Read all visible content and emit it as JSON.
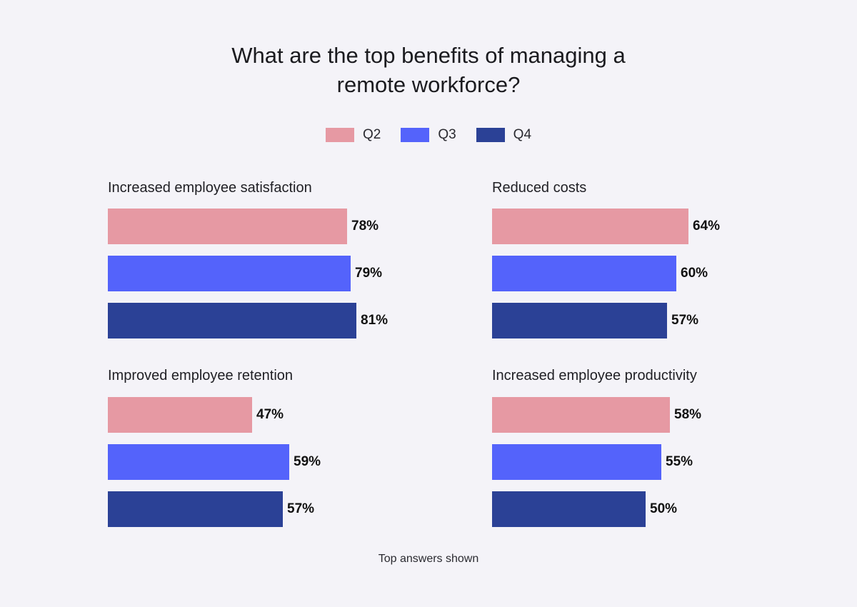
{
  "header": {
    "title_line1": "What are the top benefits of managing a",
    "title_line2": "remote workforce?"
  },
  "legend": [
    {
      "label": "Q2",
      "color": "#e699a3"
    },
    {
      "label": "Q3",
      "color": "#5463fb"
    },
    {
      "label": "Q4",
      "color": "#2b4196"
    }
  ],
  "footnote": "Top answers shown",
  "chart_data": {
    "type": "bar",
    "orientation": "horizontal",
    "title": "What are the top benefits of managing a remote workforce?",
    "series_names": [
      "Q2",
      "Q3",
      "Q4"
    ],
    "panels": [
      {
        "title": "Increased employee satisfaction",
        "values": [
          78,
          79,
          81
        ],
        "labels": [
          "78%",
          "79%",
          "81%"
        ]
      },
      {
        "title": "Reduced costs",
        "values": [
          64,
          60,
          57
        ],
        "labels": [
          "64%",
          "60%",
          "57%"
        ]
      },
      {
        "title": "Improved employee retention",
        "values": [
          47,
          59,
          57
        ],
        "labels": [
          "47%",
          "59%",
          "57%"
        ]
      },
      {
        "title": "Increased employee productivity",
        "values": [
          58,
          55,
          50
        ],
        "labels": [
          "58%",
          "55%",
          "50%"
        ]
      }
    ],
    "unit": "%",
    "grid": false,
    "legend_position": "top-center"
  }
}
